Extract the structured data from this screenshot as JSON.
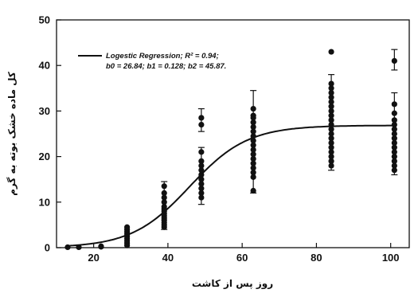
{
  "chart_data": {
    "type": "scatter",
    "title": "",
    "xlabel": "روز پس از کاشت",
    "ylabel": "کل ماده خشک بوته به گرم",
    "xlim": [
      10,
      105
    ],
    "ylim": [
      0,
      50
    ],
    "xticks": [
      20,
      40,
      60,
      80,
      100
    ],
    "yticks": [
      0,
      10,
      20,
      30,
      40,
      50
    ],
    "grid": false,
    "legend_position": "top-left",
    "legend": {
      "line1": "Logestic Regression; R² = 0.94;",
      "line2": "b0 = 26.84;  b1 = 0.128;  b2 = 45.87."
    },
    "fit": {
      "name": "Logestic Regression",
      "r2": 0.94,
      "b0": 26.84,
      "b1": 0.128,
      "b2": 45.87
    },
    "series": [
      {
        "points": [
          [
            13,
            0.1
          ],
          [
            16,
            0.1
          ],
          [
            22,
            0.2
          ],
          [
            22,
            0.3
          ],
          [
            29,
            0.5
          ],
          [
            29,
            1.0
          ],
          [
            29,
            1.5
          ],
          [
            29,
            2.0
          ],
          [
            29,
            2.5
          ],
          [
            29,
            3.0
          ],
          [
            29,
            3.5
          ],
          [
            29,
            4.0
          ],
          [
            29,
            4.5
          ],
          [
            39,
            4.5
          ],
          [
            39,
            5.0
          ],
          [
            39,
            5.5
          ],
          [
            39,
            6.0
          ],
          [
            39,
            6.5
          ],
          [
            39,
            7.0
          ],
          [
            39,
            7.5
          ],
          [
            39,
            8.0
          ],
          [
            39,
            8.5
          ],
          [
            39,
            9.0
          ],
          [
            39,
            10.0
          ],
          [
            39,
            11.0
          ],
          [
            39,
            12.0
          ],
          [
            39,
            13.5
          ],
          [
            49,
            11.0
          ],
          [
            49,
            12.0
          ],
          [
            49,
            13.0
          ],
          [
            49,
            14.0
          ],
          [
            49,
            15.0
          ],
          [
            49,
            16.0
          ],
          [
            49,
            17.0
          ],
          [
            49,
            18.0
          ],
          [
            49,
            19.0
          ],
          [
            49,
            21.0
          ],
          [
            49,
            27.0
          ],
          [
            49,
            28.5
          ],
          [
            63,
            12.5
          ],
          [
            63,
            15.5
          ],
          [
            63,
            16.5
          ],
          [
            63,
            17.5
          ],
          [
            63,
            18.5
          ],
          [
            63,
            19.5
          ],
          [
            63,
            20.5
          ],
          [
            63,
            21.5
          ],
          [
            63,
            22.5
          ],
          [
            63,
            23.5
          ],
          [
            63,
            24.5
          ],
          [
            63,
            25.5
          ],
          [
            63,
            26.5
          ],
          [
            63,
            27.5
          ],
          [
            63,
            28.5
          ],
          [
            63,
            29.0
          ],
          [
            63,
            30.5
          ],
          [
            84,
            18.0
          ],
          [
            84,
            19.0
          ],
          [
            84,
            20.0
          ],
          [
            84,
            21.0
          ],
          [
            84,
            22.0
          ],
          [
            84,
            23.0
          ],
          [
            84,
            24.0
          ],
          [
            84,
            25.0
          ],
          [
            84,
            26.0
          ],
          [
            84,
            27.0
          ],
          [
            84,
            28.0
          ],
          [
            84,
            29.0
          ],
          [
            84,
            30.0
          ],
          [
            84,
            31.0
          ],
          [
            84,
            32.0
          ],
          [
            84,
            33.0
          ],
          [
            84,
            34.0
          ],
          [
            84,
            35.0
          ],
          [
            84,
            36.0
          ],
          [
            84,
            43.0
          ],
          [
            101,
            17.0
          ],
          [
            101,
            18.0
          ],
          [
            101,
            19.0
          ],
          [
            101,
            20.0
          ],
          [
            101,
            21.0
          ],
          [
            101,
            22.0
          ],
          [
            101,
            23.0
          ],
          [
            101,
            24.0
          ],
          [
            101,
            25.0
          ],
          [
            101,
            26.0
          ],
          [
            101,
            27.0
          ],
          [
            101,
            28.0
          ],
          [
            101,
            29.5
          ],
          [
            101,
            31.5
          ],
          [
            101,
            41.0
          ]
        ]
      }
    ],
    "error_bars": [
      {
        "x": 39,
        "low": 4.0,
        "high": 14.5
      },
      {
        "x": 49,
        "low": 9.5,
        "high": 22.0
      },
      {
        "x": 49,
        "low": 25.5,
        "high": 30.5
      },
      {
        "x": 63,
        "low": 12.0,
        "high": 34.5
      },
      {
        "x": 84,
        "low": 17.0,
        "high": 38.0
      },
      {
        "x": 101,
        "low": 16.0,
        "high": 34.0
      },
      {
        "x": 101,
        "low": 39.0,
        "high": 43.5
      }
    ]
  }
}
